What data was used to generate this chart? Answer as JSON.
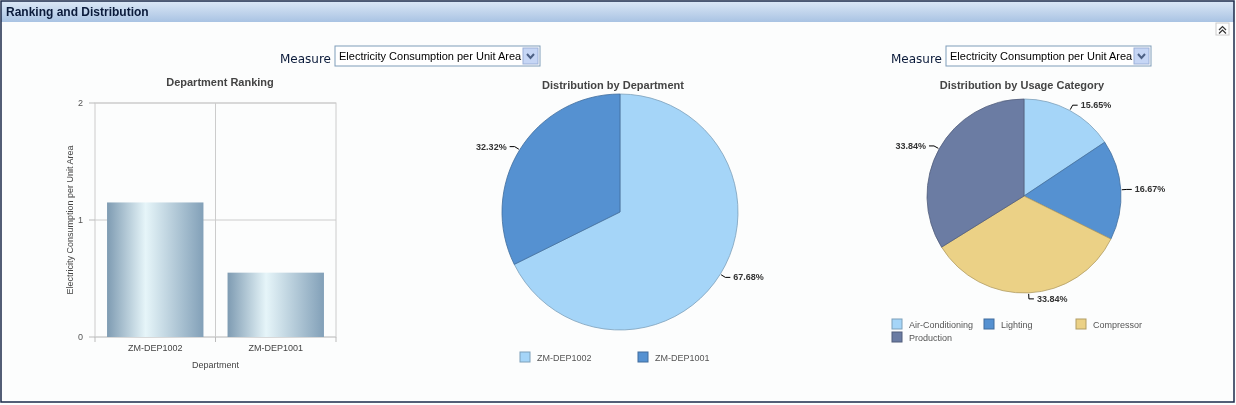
{
  "chart_data": [
    {
      "type": "bar",
      "title": "Department Ranking",
      "xlabel": "Department",
      "ylabel": "Electricity Consumption per Unit Area",
      "categories": [
        "ZM-DEP1002",
        "ZM-DEP1001"
      ],
      "values": [
        1.15,
        0.55
      ],
      "color": "#87a6bf",
      "ylim": [
        0,
        2
      ],
      "yticks": [
        0,
        1,
        2
      ],
      "grid": true,
      "annotations": [
        "Ranking and Distribution",
        "Measure",
        "Electricity Consumption per Unit Area"
      ]
    },
    {
      "type": "pie",
      "title": "Distribution by Department",
      "categories": [
        "ZM-DEP1002",
        "ZM-DEP1001"
      ],
      "values": [
        67.68,
        32.32
      ],
      "colors": [
        "#a5d5f8",
        "#5591d1"
      ],
      "value_labels": [
        "67.68%",
        "32.32%"
      ],
      "legend": "bottom"
    },
    {
      "type": "pie",
      "title": "Distribution by Usage Category",
      "categories": [
        "Air-Conditioning",
        "Lighting",
        "Compressor",
        "Production"
      ],
      "values": [
        15.65,
        16.67,
        33.84,
        33.84
      ],
      "colors": [
        "#a5d5f8",
        "#5591d1",
        "#ebd186",
        "#6b7ca3"
      ],
      "value_labels": [
        "15.65%",
        "16.67%",
        "33.84%",
        "33.84%"
      ],
      "legend": "bottom",
      "annotations": [
        "Measure",
        "Electricity Consumption per Unit Area"
      ]
    }
  ]
}
